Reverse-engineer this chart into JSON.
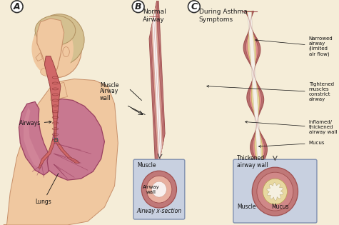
{
  "bg_color": "#f5edd8",
  "section_A_label": "A",
  "section_B_label": "B",
  "section_C_label": "C",
  "section_B_title": "Normal\nAirway",
  "section_C_title": "During Asthma\nSymptoms",
  "labels_A_airways": "Airways",
  "labels_A_lungs": "Lungs",
  "labels_A_muscle": "Muscle",
  "labels_A_airway_wall": "Airway\nwall",
  "labels_B_muscle": "Muscle",
  "labels_B_airway_wall": "Airway\nwall",
  "labels_B_cross_caption": "Airway x-section",
  "labels_C_narrowed": "Narrowed\nairway\n(limited\nair flow)",
  "labels_C_tightened": "Tightened\nmuscles\nconstrict\nairway",
  "labels_C_inflamed": "Inflamed/\nthickened\nairway wall",
  "labels_C_mucus": "Mucus",
  "labels_C_cross_thickened": "Thickened\nairway wall",
  "labels_C_cross_muscle": "Muscle",
  "labels_C_cross_mucus": "Mucus",
  "skin_color": "#f0c8a0",
  "skin_outline": "#c8906a",
  "skin_shadow": "#e0b090",
  "lung_fill": "#c87890",
  "lung_dark": "#9a4060",
  "lung_mid": "#d890a0",
  "trachea_fill": "#d06868",
  "trachea_out": "#903838",
  "tube_outer": "#c07878",
  "tube_mid": "#d89090",
  "tube_light": "#e8b0a0",
  "tube_lumen": "#f8f0ee",
  "tube_line": "#a05050",
  "asthma_outer": "#c07878",
  "asthma_mid": "#d89090",
  "asthma_wall": "#e09090",
  "asthma_mucus": "#e8d8a0",
  "asthma_lumen": "#f5f0e8",
  "cross_bg": "#c8d0e0",
  "cross_border": "#8090b0",
  "ann_color": "#111111",
  "hair_color": "#d4c090",
  "hair_outline": "#b09060",
  "fs": 5.5,
  "fs_section": 6.5,
  "fs_cross": 5.5
}
